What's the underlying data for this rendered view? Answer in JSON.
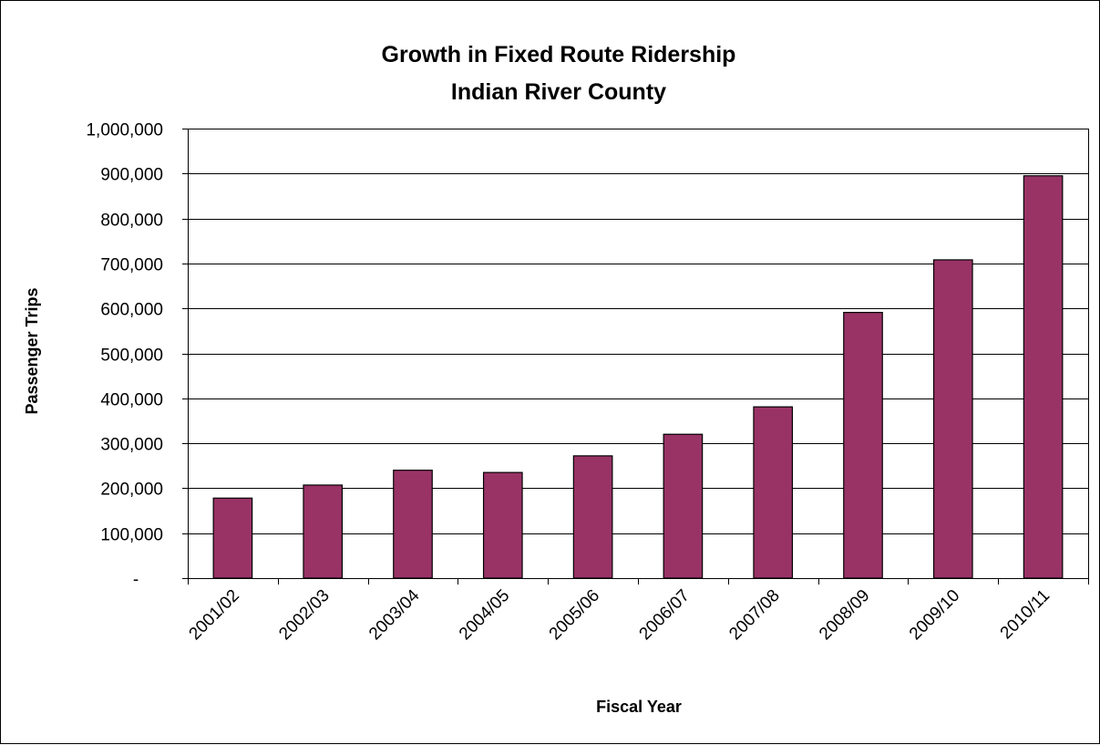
{
  "chart_data": {
    "type": "bar",
    "title": "Growth in Fixed Route Ridership",
    "subtitle": "Indian River County",
    "xlabel": "Fiscal Year",
    "ylabel": "Passenger Trips",
    "categories": [
      "2001/02",
      "2002/03",
      "2003/04",
      "2004/05",
      "2005/06",
      "2006/07",
      "2007/08",
      "2008/09",
      "2009/10",
      "2010/11"
    ],
    "values": [
      178000,
      207000,
      240000,
      235000,
      272000,
      320000,
      381000,
      591000,
      708000,
      895000
    ],
    "ylim": [
      0,
      1000000
    ],
    "ytick_values": [
      0,
      100000,
      200000,
      300000,
      400000,
      500000,
      600000,
      700000,
      800000,
      900000,
      1000000
    ],
    "ytick_labels": [
      "-",
      "100,000",
      "200,000",
      "300,000",
      "400,000",
      "500,000",
      "600,000",
      "700,000",
      "800,000",
      "900,000",
      "1,000,000"
    ],
    "grid": true,
    "legend": "none",
    "bar_color": "#993366"
  }
}
